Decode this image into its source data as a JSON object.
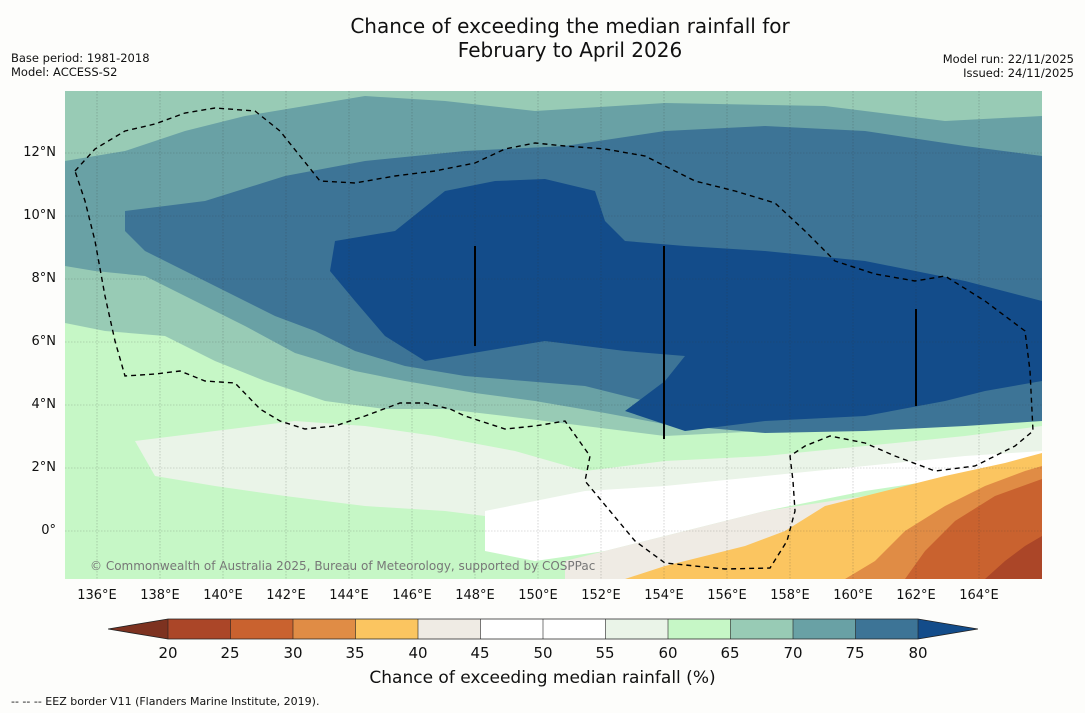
{
  "title_line1": "Chance of exceeding the median rainfall for",
  "title_line2": "February to April 2026",
  "meta_left": {
    "base_period": "Base period: 1981-2018",
    "model": "Model: ACCESS-S2"
  },
  "meta_right": {
    "model_run": "Model run: 22/11/2025",
    "issued": "Issued: 24/11/2025"
  },
  "lat_labels": [
    "12°N",
    "10°N",
    "8°N",
    "6°N",
    "4°N",
    "2°N",
    "0°"
  ],
  "lon_labels": [
    "136°E",
    "138°E",
    "140°E",
    "142°E",
    "144°E",
    "146°E",
    "148°E",
    "150°E",
    "152°E",
    "154°E",
    "156°E",
    "158°E",
    "160°E",
    "162°E",
    "164°E"
  ],
  "copyright": "© Commonwealth of Australia 2025, Bureau of Meteorology, supported by COSPPac",
  "colorbar": {
    "ticks": [
      "20",
      "25",
      "30",
      "35",
      "40",
      "45",
      "50",
      "55",
      "60",
      "65",
      "70",
      "75",
      "80"
    ],
    "colors": {
      "under20": "#7d3220",
      "c20_25": "#ab4628",
      "c25_30": "#c9622f",
      "c30_35": "#e08c45",
      "c35_40": "#fbc560",
      "c40_45": "#efebe4",
      "c45_50": "#ffffff",
      "c50_55": "#ffffff",
      "c55_60": "#eaf4e8",
      "c60_65": "#c6f7c6",
      "c65_70": "#98cbb5",
      "c70_75": "#69a1a5",
      "c75_80": "#3d7496",
      "over80": "#134c8a"
    },
    "title": "Chance of exceeding median rainfall (%)"
  },
  "footer": "--  --  -- EEZ border V11 (Flanders Marine Institute, 2019)."
}
